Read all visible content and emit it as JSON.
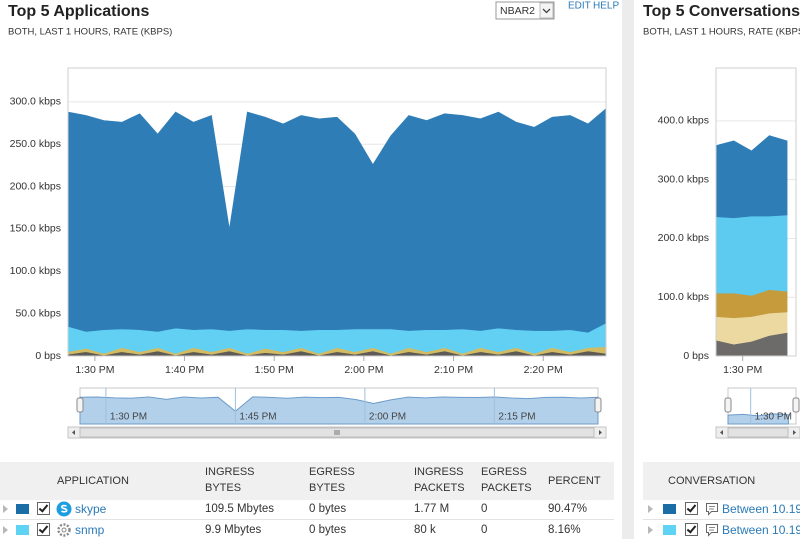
{
  "left_panel": {
    "title": "Top 5 Applications",
    "subtitle": "BOTH, LAST 1 HOURS, RATE (KBPS)",
    "dropdown": "NBAR2",
    "links": [
      "EDIT",
      "HELP"
    ],
    "chart": {
      "type": "area",
      "stacked": true,
      "grid": true,
      "x": [
        "1:27 PM",
        "1:29 PM",
        "1:31 PM",
        "1:33 PM",
        "1:35 PM",
        "1:37 PM",
        "1:39 PM",
        "1:41 PM",
        "1:43 PM",
        "1:45 PM",
        "1:47 PM",
        "1:49 PM",
        "1:51 PM",
        "1:53 PM",
        "1:55 PM",
        "1:57 PM",
        "1:59 PM",
        "2:01 PM",
        "2:03 PM",
        "2:05 PM",
        "2:07 PM",
        "2:09 PM",
        "2:11 PM",
        "2:13 PM",
        "2:15 PM",
        "2:17 PM",
        "2:19 PM",
        "2:21 PM",
        "2:23 PM",
        "2:25 PM",
        "2:27 PM"
      ],
      "xlim": [
        "1:27 PM",
        "2:27 PM"
      ],
      "xticks": [
        "1:30 PM",
        "1:40 PM",
        "1:50 PM",
        "2:00 PM",
        "2:10 PM",
        "2:20 PM"
      ],
      "ylim": [
        0,
        340
      ],
      "yticks": [
        {
          "value": 0,
          "label": "0 bps"
        },
        {
          "value": 50,
          "label": "50.0 kbps"
        },
        {
          "value": 100,
          "label": "100.0 kbps"
        },
        {
          "value": 150,
          "label": "150.0 kbps"
        },
        {
          "value": 200,
          "label": "200.0 kbps"
        },
        {
          "value": 250,
          "label": "250.0 kbps"
        },
        {
          "value": 300,
          "label": "300.0 kbps"
        }
      ],
      "series": [
        {
          "color": "#5e5a55",
          "values": [
            2,
            5,
            1,
            5,
            2,
            6,
            1,
            5,
            2,
            6,
            1,
            4,
            2,
            6,
            1,
            5,
            2,
            6,
            1,
            5,
            2,
            6,
            1,
            5,
            2,
            6,
            1,
            5,
            2,
            6,
            3
          ]
        },
        {
          "color": "#d2bb63",
          "values": [
            3,
            4,
            2,
            5,
            3,
            4,
            2,
            5,
            3,
            4,
            2,
            5,
            3,
            4,
            2,
            5,
            3,
            4,
            2,
            5,
            3,
            4,
            2,
            5,
            3,
            4,
            2,
            5,
            3,
            4,
            8
          ]
        },
        {
          "color": "#62d0f3",
          "values": [
            30,
            20,
            28,
            22,
            26,
            19,
            30,
            21,
            27,
            20,
            29,
            22,
            26,
            20,
            28,
            21,
            27,
            22,
            29,
            20,
            26,
            21,
            29,
            20,
            28,
            21,
            27,
            20,
            26,
            18,
            28
          ]
        },
        {
          "color": "#2f7db7",
          "values": [
            253,
            255,
            247,
            244,
            255,
            233,
            255,
            245,
            252,
            120,
            256,
            251,
            243,
            254,
            249,
            251,
            230,
            194,
            228,
            254,
            247,
            255,
            252,
            250,
            255,
            245,
            240,
            252,
            253,
            246,
            253
          ]
        }
      ]
    },
    "navigator": {
      "xticks": [
        "1:30 PM",
        "1:45 PM",
        "2:00 PM",
        "2:15 PM"
      ]
    },
    "table": {
      "columns": [
        "APPLICATION",
        "INGRESS BYTES",
        "EGRESS BYTES",
        "INGRESS PACKETS",
        "EGRESS PACKETS",
        "PERCENT"
      ],
      "rows": [
        {
          "color": "#1b6da6",
          "cells": [
            "skype",
            "109.5 Mbytes",
            "0 bytes",
            "1.77 M",
            "0",
            "90.47%"
          ]
        },
        {
          "color": "#5ed3f4",
          "cells": [
            "snmp",
            "9.9 Mbytes",
            "0 bytes",
            "80 k",
            "0",
            "8.16%"
          ]
        }
      ]
    }
  },
  "right_panel": {
    "title": "Top 5 Conversations",
    "subtitle": "BOTH, LAST 1 HOURS, RATE (KBPS)",
    "chart": {
      "type": "area",
      "stacked": true,
      "grid": true,
      "x": [
        "1:27 PM",
        "1:29 PM",
        "1:31 PM",
        "1:33 PM",
        "1:35 PM"
      ],
      "xlim": [
        "1:27 PM",
        "1:36 PM"
      ],
      "xticks": [
        "1:30 PM"
      ],
      "ylim": [
        0,
        490
      ],
      "yticks": [
        {
          "value": 0,
          "label": "0 bps"
        },
        {
          "value": 100,
          "label": "100.0 kbps"
        },
        {
          "value": 200,
          "label": "200.0 kbps"
        },
        {
          "value": 300,
          "label": "300.0 kbps"
        },
        {
          "value": 400,
          "label": "400.0 kbps"
        }
      ],
      "series": [
        {
          "color": "#6c6b69",
          "values": [
            27,
            20,
            25,
            35,
            40
          ]
        },
        {
          "color": "#ecd9a2",
          "values": [
            40,
            45,
            42,
            38,
            35
          ]
        },
        {
          "color": "#c59b3c",
          "values": [
            40,
            42,
            36,
            40,
            35
          ]
        },
        {
          "color": "#5ccbef",
          "values": [
            130,
            128,
            135,
            125,
            130
          ]
        },
        {
          "color": "#2f7db7",
          "values": [
            121,
            131,
            111,
            137,
            126
          ]
        }
      ]
    },
    "navigator": {
      "xticks": [
        "1:30 PM"
      ]
    },
    "table": {
      "columns": [
        "CONVERSATION"
      ],
      "rows": [
        {
          "color": "#1b6da6",
          "cells": [
            "Between 10.19"
          ]
        },
        {
          "color": "#5ed3f4",
          "cells": [
            "Between 10.19"
          ]
        }
      ]
    }
  }
}
